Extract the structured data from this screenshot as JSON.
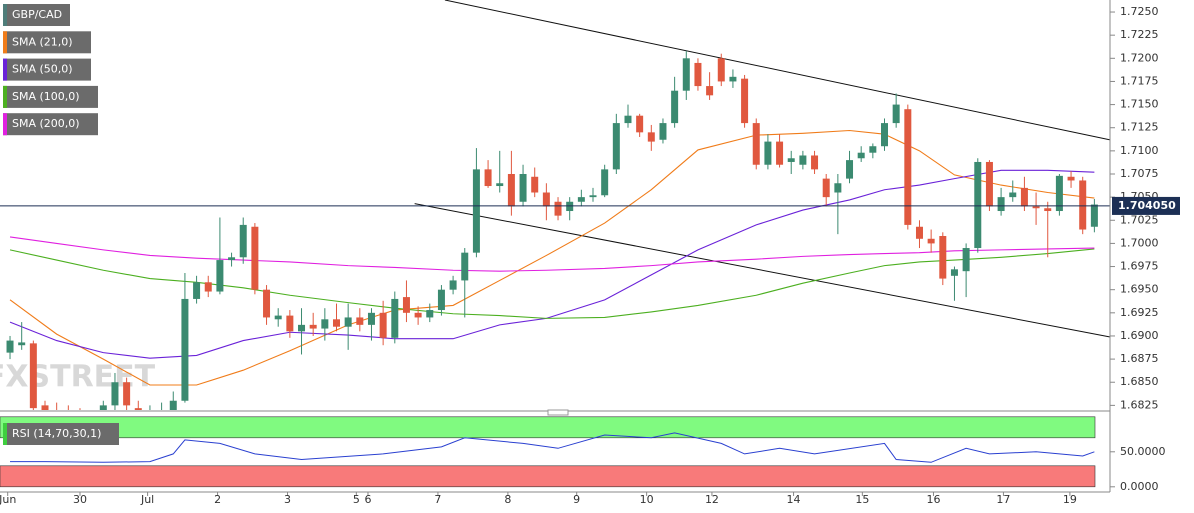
{
  "chart_data": [
    {
      "type": "candlestick",
      "name": "GBP/CAD",
      "watermark": "FXSTREET",
      "color_up": "#3b8a70",
      "color_down": "#e0583f",
      "name_color": "#4f7d7a",
      "open": [
        1.6882,
        1.689,
        1.6892,
        1.6825,
        1.682,
        1.6818,
        1.6815,
        1.6812,
        1.6815,
        1.6825,
        1.685,
        1.6822,
        1.6815,
        1.6818,
        1.682,
        1.683,
        1.694,
        1.6958,
        1.6948,
        1.6982,
        1.6985,
        1.7018,
        1.695,
        1.6918,
        1.6922,
        1.6905,
        1.6912,
        1.6908,
        1.6918,
        1.691,
        1.692,
        1.6912,
        1.6925,
        1.6898,
        1.6942,
        1.6925,
        1.692,
        1.6928,
        1.695,
        1.696,
        1.699,
        1.708,
        1.7062,
        1.7075,
        1.7045,
        1.7072,
        1.7055,
        1.7045,
        1.7035,
        1.7045,
        1.705,
        1.7052,
        1.708,
        1.713,
        1.7138,
        1.712,
        1.7112,
        1.713,
        1.7165,
        1.7195,
        1.717,
        1.72,
        1.7175,
        1.7178,
        1.713,
        1.7085,
        1.711,
        1.7088,
        1.7085,
        1.7095,
        1.707,
        1.7055,
        1.707,
        1.7092,
        1.7098,
        1.7105,
        1.713,
        1.7145,
        1.7018,
        1.7005,
        1.7008,
        1.6965,
        1.697,
        1.6995,
        1.7088,
        1.7035,
        1.705,
        1.706,
        1.704,
        1.7038,
        1.7035,
        1.7072,
        1.7068,
        1.7018
      ],
      "high": [
        1.69,
        1.6915,
        1.6895,
        1.683,
        1.6828,
        1.6825,
        1.6822,
        1.682,
        1.683,
        1.686,
        1.6855,
        1.683,
        1.6825,
        1.6828,
        1.684,
        1.6968,
        1.6965,
        1.6965,
        1.7028,
        1.699,
        1.7028,
        1.7022,
        1.6955,
        1.693,
        1.6928,
        1.693,
        1.6925,
        1.693,
        1.6935,
        1.6935,
        1.693,
        1.693,
        1.6938,
        1.6948,
        1.696,
        1.6932,
        1.6935,
        1.6955,
        1.6965,
        1.6995,
        1.7103,
        1.709,
        1.71,
        1.71,
        1.7085,
        1.7082,
        1.7065,
        1.705,
        1.705,
        1.7058,
        1.706,
        1.7085,
        1.714,
        1.715,
        1.714,
        1.7128,
        1.7135,
        1.718,
        1.7208,
        1.72,
        1.7185,
        1.7205,
        1.7188,
        1.7182,
        1.7135,
        1.7118,
        1.7118,
        1.71,
        1.71,
        1.71,
        1.7075,
        1.7075,
        1.71,
        1.7105,
        1.7108,
        1.7135,
        1.7162,
        1.715,
        1.7025,
        1.7015,
        1.7012,
        1.6975,
        1.7,
        1.7092,
        1.709,
        1.706,
        1.7068,
        1.7072,
        1.7055,
        1.7045,
        1.7075,
        1.7078,
        1.7072,
        1.7048
      ],
      "low": [
        1.6875,
        1.6885,
        1.6812,
        1.681,
        1.681,
        1.6808,
        1.6805,
        1.6805,
        1.681,
        1.682,
        1.6815,
        1.681,
        1.6805,
        1.6812,
        1.6815,
        1.6828,
        1.6935,
        1.6942,
        1.6945,
        1.6975,
        1.6978,
        1.6945,
        1.6912,
        1.691,
        1.6898,
        1.688,
        1.69,
        1.6895,
        1.6905,
        1.6885,
        1.6905,
        1.6895,
        1.689,
        1.6892,
        1.6915,
        1.6912,
        1.6915,
        1.6922,
        1.6945,
        1.692,
        1.6985,
        1.706,
        1.7055,
        1.703,
        1.704,
        1.705,
        1.7025,
        1.7025,
        1.7025,
        1.704,
        1.7045,
        1.705,
        1.7075,
        1.7125,
        1.7115,
        1.71,
        1.7108,
        1.7125,
        1.7155,
        1.7165,
        1.7155,
        1.717,
        1.7168,
        1.7125,
        1.708,
        1.708,
        1.7082,
        1.7075,
        1.708,
        1.7075,
        1.704,
        1.701,
        1.7065,
        1.7088,
        1.7092,
        1.71,
        1.7125,
        1.7015,
        1.6995,
        1.699,
        1.6955,
        1.6938,
        1.6942,
        1.699,
        1.7035,
        1.703,
        1.7045,
        1.7035,
        1.702,
        1.6985,
        1.703,
        1.706,
        1.701,
        1.7012
      ],
      "close": [
        1.6895,
        1.6893,
        1.6822,
        1.6815,
        1.6818,
        1.6815,
        1.6812,
        1.6815,
        1.6825,
        1.685,
        1.6825,
        1.6815,
        1.6818,
        1.682,
        1.683,
        1.694,
        1.6958,
        1.6948,
        1.6982,
        1.6985,
        1.702,
        1.695,
        1.692,
        1.6922,
        1.6905,
        1.6912,
        1.6908,
        1.6918,
        1.691,
        1.692,
        1.6912,
        1.6925,
        1.6898,
        1.694,
        1.6925,
        1.692,
        1.6928,
        1.695,
        1.696,
        1.699,
        1.708,
        1.7062,
        1.7065,
        1.704,
        1.7075,
        1.7055,
        1.704,
        1.703,
        1.7045,
        1.705,
        1.7052,
        1.708,
        1.713,
        1.7138,
        1.712,
        1.711,
        1.713,
        1.7165,
        1.72,
        1.717,
        1.716,
        1.7175,
        1.718,
        1.713,
        1.7085,
        1.711,
        1.7085,
        1.7092,
        1.7095,
        1.708,
        1.705,
        1.7065,
        1.709,
        1.7098,
        1.7105,
        1.713,
        1.715,
        1.702,
        1.7005,
        1.7,
        1.6962,
        1.6972,
        1.6995,
        1.7088,
        1.704,
        1.705,
        1.7055,
        1.704,
        1.7038,
        1.7035,
        1.7073,
        1.7068,
        1.7015,
        1.7042
      ],
      "series": [
        {
          "name": "SMA (21,0)",
          "color": "#f07c1a",
          "x": [
            0,
            4,
            8,
            12,
            16,
            20,
            24,
            29,
            33,
            38,
            42,
            46,
            51,
            55,
            59,
            64,
            68,
            72,
            75,
            78,
            81,
            85,
            89,
            93
          ],
          "values": [
            1.6939,
            1.6902,
            1.6875,
            1.6847,
            1.6847,
            1.6863,
            1.6884,
            1.6912,
            1.6928,
            1.6933,
            1.696,
            1.6987,
            1.7022,
            1.7058,
            1.7101,
            1.7117,
            1.7119,
            1.7122,
            1.7118,
            1.71,
            1.7074,
            1.7063,
            1.7055,
            1.7049
          ]
        },
        {
          "name": "SMA (50,0)",
          "color": "#6a22d8",
          "x": [
            0,
            4,
            8,
            12,
            16,
            20,
            24,
            29,
            33,
            38,
            42,
            46,
            51,
            55,
            59,
            64,
            68,
            72,
            75,
            78,
            81,
            85,
            89,
            93
          ],
          "values": [
            1.6915,
            1.6895,
            1.6882,
            1.6876,
            1.6879,
            1.6895,
            1.6904,
            1.6901,
            1.6897,
            1.6897,
            1.6912,
            1.6919,
            1.6939,
            1.6966,
            1.6993,
            1.702,
            1.7036,
            1.7047,
            1.7058,
            1.7063,
            1.707,
            1.7079,
            1.7079,
            1.7077
          ]
        },
        {
          "name": "SMA (100,0)",
          "color": "#4caf20",
          "x": [
            0,
            4,
            8,
            12,
            16,
            20,
            24,
            29,
            33,
            38,
            42,
            46,
            51,
            55,
            59,
            64,
            68,
            72,
            75,
            78,
            81,
            85,
            89,
            93
          ],
          "values": [
            1.6993,
            1.6982,
            1.6971,
            1.6962,
            1.6958,
            1.6952,
            1.6944,
            1.6936,
            1.693,
            1.6924,
            1.6922,
            1.6919,
            1.692,
            1.6926,
            1.6933,
            1.6944,
            1.6957,
            1.6968,
            1.6976,
            1.698,
            1.6982,
            1.6985,
            1.6989,
            1.6994
          ]
        },
        {
          "name": "SMA (200,0)",
          "color": "#e020e0",
          "x": [
            0,
            4,
            8,
            12,
            16,
            20,
            24,
            29,
            33,
            38,
            42,
            46,
            51,
            55,
            59,
            64,
            68,
            72,
            75,
            78,
            81,
            85,
            89,
            93
          ],
          "values": [
            1.7007,
            1.7,
            1.6993,
            1.6987,
            1.6984,
            1.6982,
            1.698,
            1.6976,
            1.6974,
            1.6971,
            1.697,
            1.6971,
            1.6973,
            1.6976,
            1.698,
            1.6983,
            1.6986,
            1.6988,
            1.6989,
            1.699,
            1.6992,
            1.6993,
            1.6994,
            1.6995
          ]
        }
      ],
      "trendlines": [
        {
          "x": [
            37.3,
            94.3
          ],
          "values": [
            1.7263,
            1.7112
          ]
        },
        {
          "x": [
            34.7,
            94.3
          ],
          "values": [
            1.7043,
            1.6899
          ]
        }
      ],
      "last_price": {
        "value": 1.70405,
        "label": "1.704050"
      },
      "ylim": [
        1.682,
        1.7263
      ],
      "yticks": [
        {
          "value": 1.6825,
          "label": "1.6825"
        },
        {
          "value": 1.685,
          "label": "1.6850"
        },
        {
          "value": 1.6875,
          "label": "1.6875"
        },
        {
          "value": 1.69,
          "label": "1.6900"
        },
        {
          "value": 1.6925,
          "label": "1.6925"
        },
        {
          "value": 1.695,
          "label": "1.6950"
        },
        {
          "value": 1.6975,
          "label": "1.6975"
        },
        {
          "value": 1.7,
          "label": "1.7000"
        },
        {
          "value": 1.7025,
          "label": "1.7025"
        },
        {
          "value": 1.705,
          "label": "1.7050"
        },
        {
          "value": 1.7075,
          "label": "1.7075"
        },
        {
          "value": 1.71,
          "label": "1.7100"
        },
        {
          "value": 1.7125,
          "label": "1.7125"
        },
        {
          "value": 1.715,
          "label": "1.7150"
        },
        {
          "value": 1.7175,
          "label": "1.7175"
        },
        {
          "value": 1.72,
          "label": "1.7200"
        },
        {
          "value": 1.7225,
          "label": "1.7225"
        },
        {
          "value": 1.725,
          "label": "1.7250"
        }
      ],
      "xlim": [
        -0.86,
        94.34
      ],
      "xticks": [
        {
          "value": -0.2,
          "label": "Jun"
        },
        {
          "value": 6.0,
          "label": "30"
        },
        {
          "value": 11.8,
          "label": "Jul"
        },
        {
          "value": 17.8,
          "label": "2"
        },
        {
          "value": 23.8,
          "label": "3"
        },
        {
          "value": 29.7,
          "label": "5"
        },
        {
          "value": 30.7,
          "label": "6"
        },
        {
          "value": 36.7,
          "label": "7"
        },
        {
          "value": 42.7,
          "label": "8"
        },
        {
          "value": 48.6,
          "label": "9"
        },
        {
          "value": 54.6,
          "label": "10"
        },
        {
          "value": 60.2,
          "label": "12"
        },
        {
          "value": 67.2,
          "label": "14"
        },
        {
          "value": 73.1,
          "label": "15"
        },
        {
          "value": 79.2,
          "label": "16"
        },
        {
          "value": 85.2,
          "label": "17"
        },
        {
          "value": 90.9,
          "label": "19"
        }
      ]
    },
    {
      "type": "line",
      "name": "RSI (14,70,30,1)",
      "color": "#2a40d0",
      "x": [
        0,
        3,
        8,
        12,
        14,
        15,
        18,
        21,
        25,
        32,
        37,
        39,
        44,
        47,
        51,
        55,
        57,
        61,
        63,
        66,
        69,
        75,
        76,
        79,
        82,
        84,
        88,
        90,
        92,
        93
      ],
      "values": [
        36,
        36,
        35,
        36,
        47,
        67,
        62,
        47,
        39,
        47,
        57,
        70,
        62,
        55,
        74,
        70,
        77,
        62,
        47,
        55,
        47,
        62,
        39,
        35,
        55,
        47,
        50,
        47,
        44,
        50
      ],
      "zones": [
        {
          "from": 70,
          "to": 100,
          "color": "#80fa80"
        },
        {
          "from": 0,
          "to": 30,
          "color": "#f87a7a"
        }
      ],
      "ylim": [
        -6,
        104
      ],
      "yticks": [
        {
          "value": 50,
          "label": "50.0000"
        },
        {
          "value": 0,
          "label": "0.0000"
        }
      ],
      "xlim": [
        -0.86,
        94.34
      ]
    }
  ]
}
